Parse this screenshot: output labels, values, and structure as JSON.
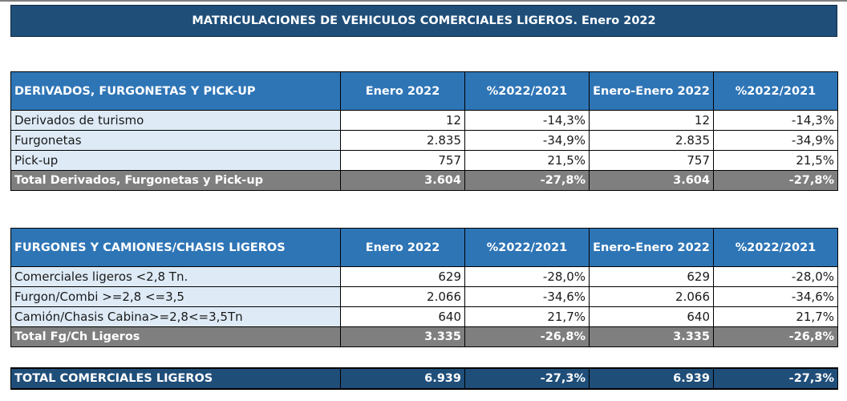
{
  "title": "MATRICULACIONES DE VEHICULOS COMERCIALES LIGEROS. Enero 2022",
  "columns": [
    "Enero 2022",
    "%2022/2021",
    "Enero-Enero 2022",
    "%2022/2021"
  ],
  "section1": {
    "header": "DERIVADOS, FURGONETAS Y PICK-UP",
    "rows": [
      {
        "label": "Derivados de turismo",
        "v": [
          "12",
          "-14,3%",
          "12",
          "-14,3%"
        ]
      },
      {
        "label": "Furgonetas",
        "v": [
          "2.835",
          "-34,9%",
          "2.835",
          "-34,9%"
        ]
      },
      {
        "label": "Pick-up",
        "v": [
          "757",
          "21,5%",
          "757",
          "21,5%"
        ]
      }
    ],
    "total": {
      "label": "Total Derivados, Furgonetas y Pick-up",
      "v": [
        "3.604",
        "-27,8%",
        "3.604",
        "-27,8%"
      ]
    }
  },
  "section2": {
    "header": "FURGONES Y CAMIONES/CHASIS LIGEROS",
    "rows": [
      {
        "label": "Comerciales ligeros <2,8 Tn.",
        "v": [
          "629",
          "-28,0%",
          "629",
          "-28,0%"
        ]
      },
      {
        "label": "Furgon/Combi >=2,8 <=3,5",
        "v": [
          "2.066",
          "-34,6%",
          "2.066",
          "-34,6%"
        ]
      },
      {
        "label": "Camión/Chasis Cabina>=2,8<=3,5Tn",
        "v": [
          "640",
          "21,7%",
          "640",
          "21,7%"
        ]
      }
    ],
    "total": {
      "label": "Total Fg/Ch Ligeros",
      "v": [
        "3.335",
        "-26,8%",
        "3.335",
        "-26,8%"
      ]
    }
  },
  "grand_total": {
    "label": "TOTAL COMERCIALES LIGEROS",
    "v": [
      "6.939",
      "-27,3%",
      "6.939",
      "-27,3%"
    ]
  }
}
